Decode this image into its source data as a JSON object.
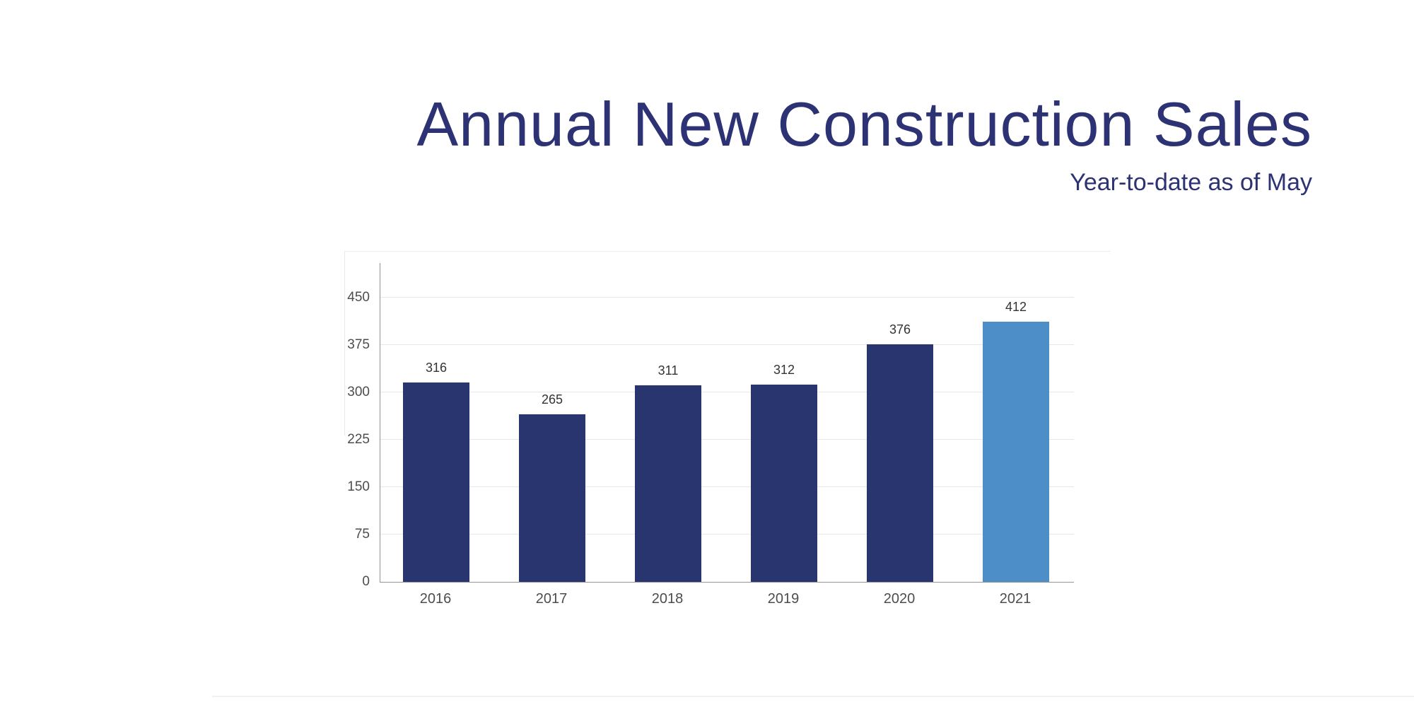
{
  "title": "Annual New Construction Sales",
  "subtitle": "Year-to-date as of May",
  "colors": {
    "bar_navy": "#29356E",
    "bar_highlight": "#4E8EC8",
    "heading_text": "#2C3273",
    "grid": "#E4E7EE",
    "axis": "#949494",
    "tick_text": "#4D4D4D",
    "value_text": "#333333"
  },
  "chart_data": {
    "type": "bar",
    "categories": [
      "2016",
      "2017",
      "2018",
      "2019",
      "2020",
      "2021"
    ],
    "values": [
      316,
      265,
      311,
      312,
      376,
      412
    ],
    "bar_value_labels": [
      "316",
      "265",
      "311",
      "312",
      "376",
      "412"
    ],
    "highlight_index": 5,
    "title": "Annual New Construction Sales",
    "subtitle": "Year-to-date as of May",
    "xlabel": "",
    "ylabel": "",
    "ylim": [
      0,
      505
    ],
    "yticks": [
      0,
      75,
      150,
      225,
      300,
      375,
      450
    ],
    "grid": "horizontal",
    "legend": "none"
  }
}
